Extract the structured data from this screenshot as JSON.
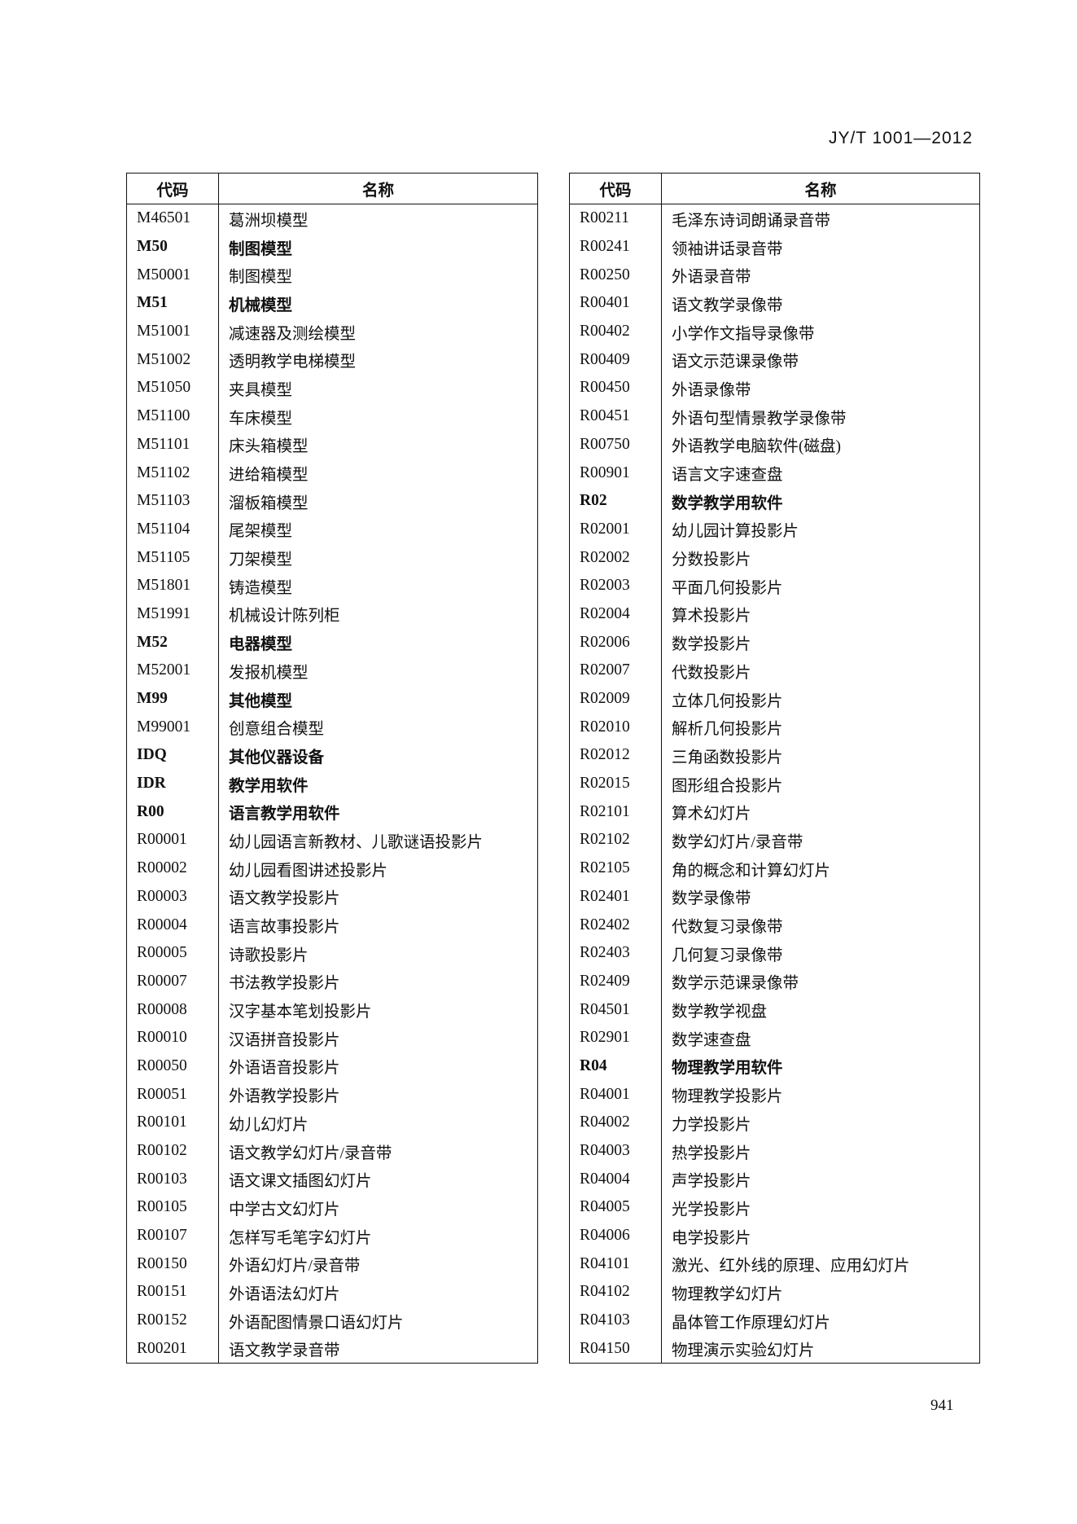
{
  "header": {
    "doc_id": "JY/T 1001—2012"
  },
  "footer": {
    "page_number": "941"
  },
  "columns": {
    "code": "代码",
    "name": "名称"
  },
  "left_table": [
    {
      "code": "M46501",
      "name": "葛洲坝模型",
      "bold": false
    },
    {
      "code": "M50",
      "name": "制图模型",
      "bold": true
    },
    {
      "code": "M50001",
      "name": "制图模型",
      "bold": false
    },
    {
      "code": "M51",
      "name": "机械模型",
      "bold": true
    },
    {
      "code": "M51001",
      "name": "减速器及测绘模型",
      "bold": false
    },
    {
      "code": "M51002",
      "name": "透明教学电梯模型",
      "bold": false
    },
    {
      "code": "M51050",
      "name": "夹具模型",
      "bold": false
    },
    {
      "code": "M51100",
      "name": "车床模型",
      "bold": false
    },
    {
      "code": "M51101",
      "name": "床头箱模型",
      "bold": false
    },
    {
      "code": "M51102",
      "name": "进给箱模型",
      "bold": false
    },
    {
      "code": "M51103",
      "name": "溜板箱模型",
      "bold": false
    },
    {
      "code": "M51104",
      "name": "尾架模型",
      "bold": false
    },
    {
      "code": "M51105",
      "name": "刀架模型",
      "bold": false
    },
    {
      "code": "M51801",
      "name": "铸造模型",
      "bold": false
    },
    {
      "code": "M51991",
      "name": "机械设计陈列柜",
      "bold": false
    },
    {
      "code": "M52",
      "name": "电器模型",
      "bold": true
    },
    {
      "code": "M52001",
      "name": "发报机模型",
      "bold": false
    },
    {
      "code": "M99",
      "name": "其他模型",
      "bold": true
    },
    {
      "code": "M99001",
      "name": "创意组合模型",
      "bold": false
    },
    {
      "code": "IDQ",
      "name": "其他仪器设备",
      "bold": true
    },
    {
      "code": "IDR",
      "name": "教学用软件",
      "bold": true
    },
    {
      "code": "R00",
      "name": "语言教学用软件",
      "bold": true
    },
    {
      "code": "R00001",
      "name": "幼儿园语言新教材、儿歌谜语投影片",
      "bold": false
    },
    {
      "code": "R00002",
      "name": "幼儿园看图讲述投影片",
      "bold": false
    },
    {
      "code": "R00003",
      "name": "语文教学投影片",
      "bold": false
    },
    {
      "code": "R00004",
      "name": "语言故事投影片",
      "bold": false
    },
    {
      "code": "R00005",
      "name": "诗歌投影片",
      "bold": false
    },
    {
      "code": "R00007",
      "name": "书法教学投影片",
      "bold": false
    },
    {
      "code": "R00008",
      "name": "汉字基本笔划投影片",
      "bold": false
    },
    {
      "code": "R00010",
      "name": "汉语拼音投影片",
      "bold": false
    },
    {
      "code": "R00050",
      "name": "外语语音投影片",
      "bold": false
    },
    {
      "code": "R00051",
      "name": "外语教学投影片",
      "bold": false
    },
    {
      "code": "R00101",
      "name": "幼儿幻灯片",
      "bold": false
    },
    {
      "code": "R00102",
      "name": "语文教学幻灯片/录音带",
      "bold": false
    },
    {
      "code": "R00103",
      "name": "语文课文插图幻灯片",
      "bold": false
    },
    {
      "code": "R00105",
      "name": "中学古文幻灯片",
      "bold": false
    },
    {
      "code": "R00107",
      "name": "怎样写毛笔字幻灯片",
      "bold": false
    },
    {
      "code": "R00150",
      "name": "外语幻灯片/录音带",
      "bold": false
    },
    {
      "code": "R00151",
      "name": "外语语法幻灯片",
      "bold": false
    },
    {
      "code": "R00152",
      "name": "外语配图情景口语幻灯片",
      "bold": false
    },
    {
      "code": "R00201",
      "name": "语文教学录音带",
      "bold": false
    }
  ],
  "right_table": [
    {
      "code": "R00211",
      "name": "毛泽东诗词朗诵录音带",
      "bold": false
    },
    {
      "code": "R00241",
      "name": "领袖讲话录音带",
      "bold": false
    },
    {
      "code": "R00250",
      "name": "外语录音带",
      "bold": false
    },
    {
      "code": "R00401",
      "name": "语文教学录像带",
      "bold": false
    },
    {
      "code": "R00402",
      "name": "小学作文指导录像带",
      "bold": false
    },
    {
      "code": "R00409",
      "name": "语文示范课录像带",
      "bold": false
    },
    {
      "code": "R00450",
      "name": "外语录像带",
      "bold": false
    },
    {
      "code": "R00451",
      "name": "外语句型情景教学录像带",
      "bold": false
    },
    {
      "code": "R00750",
      "name": "外语教学电脑软件(磁盘)",
      "bold": false
    },
    {
      "code": "R00901",
      "name": "语言文字速查盘",
      "bold": false
    },
    {
      "code": "R02",
      "name": "数学教学用软件",
      "bold": true
    },
    {
      "code": "R02001",
      "name": "幼儿园计算投影片",
      "bold": false
    },
    {
      "code": "R02002",
      "name": "分数投影片",
      "bold": false
    },
    {
      "code": "R02003",
      "name": "平面几何投影片",
      "bold": false
    },
    {
      "code": "R02004",
      "name": "算术投影片",
      "bold": false
    },
    {
      "code": "R02006",
      "name": "数学投影片",
      "bold": false
    },
    {
      "code": "R02007",
      "name": "代数投影片",
      "bold": false
    },
    {
      "code": "R02009",
      "name": "立体几何投影片",
      "bold": false
    },
    {
      "code": "R02010",
      "name": "解析几何投影片",
      "bold": false
    },
    {
      "code": "R02012",
      "name": "三角函数投影片",
      "bold": false
    },
    {
      "code": "R02015",
      "name": "图形组合投影片",
      "bold": false
    },
    {
      "code": "R02101",
      "name": "算术幻灯片",
      "bold": false
    },
    {
      "code": "R02102",
      "name": "数学幻灯片/录音带",
      "bold": false
    },
    {
      "code": "R02105",
      "name": "角的概念和计算幻灯片",
      "bold": false
    },
    {
      "code": "R02401",
      "name": "数学录像带",
      "bold": false
    },
    {
      "code": "R02402",
      "name": "代数复习录像带",
      "bold": false
    },
    {
      "code": "R02403",
      "name": "几何复习录像带",
      "bold": false
    },
    {
      "code": "R02409",
      "name": "数学示范课录像带",
      "bold": false
    },
    {
      "code": "R04501",
      "name": "数学教学视盘",
      "bold": false
    },
    {
      "code": "R02901",
      "name": "数学速查盘",
      "bold": false
    },
    {
      "code": "R04",
      "name": "物理教学用软件",
      "bold": true
    },
    {
      "code": "R04001",
      "name": "物理教学投影片",
      "bold": false
    },
    {
      "code": "R04002",
      "name": "力学投影片",
      "bold": false
    },
    {
      "code": "R04003",
      "name": "热学投影片",
      "bold": false
    },
    {
      "code": "R04004",
      "name": "声学投影片",
      "bold": false
    },
    {
      "code": "R04005",
      "name": "光学投影片",
      "bold": false
    },
    {
      "code": "R04006",
      "name": "电学投影片",
      "bold": false
    },
    {
      "code": "R04101",
      "name": "激光、红外线的原理、应用幻灯片",
      "bold": false
    },
    {
      "code": "R04102",
      "name": "物理教学幻灯片",
      "bold": false
    },
    {
      "code": "R04103",
      "name": "晶体管工作原理幻灯片",
      "bold": false
    },
    {
      "code": "R04150",
      "name": "物理演示实验幻灯片",
      "bold": false
    }
  ]
}
